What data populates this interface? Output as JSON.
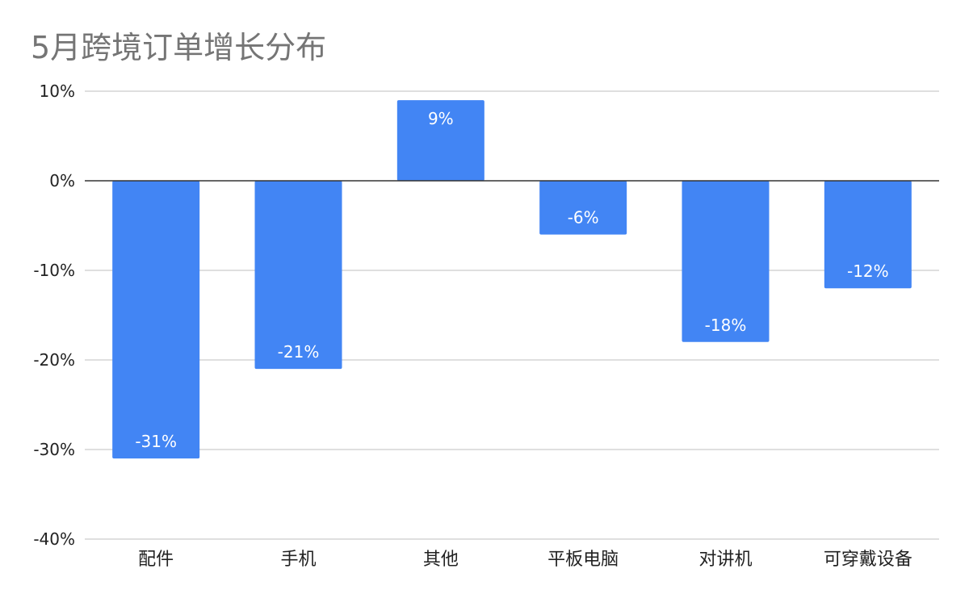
{
  "chart_data": {
    "type": "bar",
    "title": "5月跨境订单增长分布",
    "xlabel": "",
    "ylabel": "",
    "categories": [
      "配件",
      "手机",
      "其他",
      "平板电脑",
      "对讲机",
      "可穿戴设备"
    ],
    "values": [
      -31,
      -21,
      9,
      -6,
      -18,
      -12
    ],
    "data_labels": [
      "-31%",
      "-21%",
      "9%",
      "-6%",
      "-18%",
      "-12%"
    ],
    "ylim": [
      -40,
      10
    ],
    "yticks": [
      10,
      0,
      -10,
      -20,
      -30,
      -40
    ],
    "ytick_labels": [
      "10%",
      "0%",
      "-10%",
      "-20%",
      "-30%",
      "-40%"
    ],
    "grid": true,
    "legend": "none",
    "colors": {
      "bar": "#4285F4",
      "grid": "#cccccc",
      "zero_line": "#333333",
      "title": "#757575",
      "text": "#222222",
      "data_label": "#ffffff"
    }
  }
}
